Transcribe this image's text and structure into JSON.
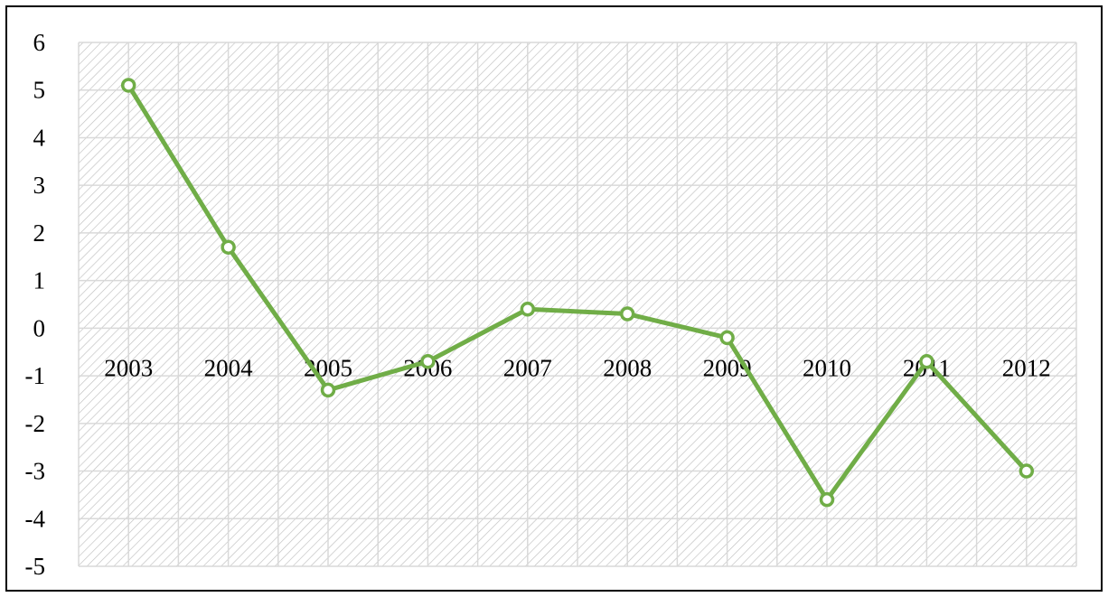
{
  "chart_data": {
    "type": "line",
    "title": "",
    "xlabel": "",
    "ylabel": "",
    "categories": [
      "2003",
      "2004",
      "2005",
      "2006",
      "2007",
      "2008",
      "2009",
      "2010",
      "2011",
      "2012"
    ],
    "series": [
      {
        "values": [
          5.1,
          1.7,
          -1.3,
          -0.7,
          0.4,
          0.3,
          -0.2,
          -3.6,
          -0.7,
          -3.0
        ]
      }
    ],
    "ylim": [
      -5,
      6
    ],
    "yticks": [
      6,
      5,
      4,
      3,
      2,
      1,
      0,
      -1,
      -2,
      -3,
      -4,
      -5
    ],
    "ytick_labels": [
      "6",
      "5",
      "4",
      "3",
      "2",
      "1",
      "0",
      "-1",
      "-2",
      "-3",
      "-4",
      "-5"
    ],
    "grid": true,
    "legend": "none",
    "colors": {
      "line": "#70ad47",
      "marker_fill": "#ffffff",
      "grid": "#d9d9d9",
      "hatch": "#bfbfbf"
    }
  }
}
